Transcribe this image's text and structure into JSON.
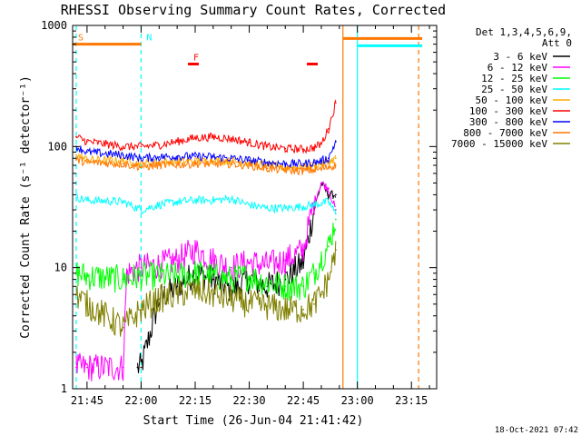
{
  "chart_data": {
    "type": "line",
    "title": "RHESSI Observing Summary Count Rates, Corrected",
    "xlabel": "Start Time (26-Jun-04 21:41:42)",
    "ylabel": "Corrected Count Rate (s⁻¹ detector⁻¹)",
    "y_scale": "log",
    "ylim": [
      1,
      1000
    ],
    "xlim": [
      "21:41",
      "23:22"
    ],
    "x_ticks": [
      "21:45",
      "22:00",
      "22:15",
      "22:30",
      "22:45",
      "23:00",
      "23:15"
    ],
    "y_ticks": [
      "1",
      "10",
      "100",
      "1000"
    ],
    "legend_header": [
      "Det 1,3,4,5,6,9,",
      "Att 0"
    ],
    "legend_position": "right",
    "series": [
      {
        "name": "3 - 6 keV",
        "color": "#000000",
        "x": [
          "21:59",
          "22:00",
          "22:05",
          "22:10",
          "22:15",
          "22:20",
          "22:25",
          "22:30",
          "22:35",
          "22:40",
          "22:45",
          "22:48",
          "22:50",
          "22:52",
          "22:54"
        ],
        "y": [
          1.5,
          1.5,
          5.5,
          7,
          9,
          8,
          6.5,
          8,
          7,
          8,
          11,
          30,
          50,
          40,
          40
        ]
      },
      {
        "name": "6 - 12 keV",
        "color": "#ff00ff",
        "x": [
          "21:42",
          "21:45",
          "21:55",
          "21:56",
          "22:00",
          "22:05",
          "22:10",
          "22:15",
          "22:20",
          "22:25",
          "22:30",
          "22:35",
          "22:40",
          "22:45",
          "22:48",
          "22:50",
          "22:52",
          "22:54"
        ],
        "y": [
          1.5,
          1.5,
          1.5,
          9,
          10,
          10.5,
          11.5,
          14,
          11.5,
          10,
          11,
          10.5,
          11.5,
          14,
          35,
          50,
          45,
          30
        ]
      },
      {
        "name": "12 - 25 keV",
        "color": "#00ff00",
        "x": [
          "21:42",
          "21:45",
          "21:55",
          "22:00",
          "22:05",
          "22:10",
          "22:15",
          "22:20",
          "22:25",
          "22:30",
          "22:35",
          "22:40",
          "22:45",
          "22:48",
          "22:50",
          "22:52",
          "22:54"
        ],
        "y": [
          9,
          8.5,
          8,
          8.5,
          8.5,
          8.5,
          9,
          8.5,
          8,
          8.5,
          7.5,
          7,
          7,
          9,
          12,
          15,
          25
        ]
      },
      {
        "name": "25 - 50 keV",
        "color": "#00ffff",
        "x": [
          "21:42",
          "21:45",
          "21:55",
          "22:00",
          "22:05",
          "22:10",
          "22:15",
          "22:20",
          "22:25",
          "22:30",
          "22:35",
          "22:40",
          "22:45",
          "22:48",
          "22:50",
          "22:52",
          "22:54"
        ],
        "y": [
          38,
          36,
          35,
          30,
          33,
          35,
          36,
          36,
          37,
          33,
          31,
          31,
          32,
          33,
          34,
          35,
          28
        ]
      },
      {
        "name": "50 - 100 keV",
        "color": "#ffaa00",
        "x": [
          "21:42",
          "21:45",
          "21:55",
          "22:00",
          "22:05",
          "22:10",
          "22:15",
          "22:20",
          "22:25",
          "22:30",
          "22:35",
          "22:40",
          "22:45",
          "22:48",
          "22:50",
          "22:52",
          "22:54"
        ],
        "y": [
          85,
          78,
          76,
          72,
          74,
          75,
          76,
          76,
          76,
          73,
          70,
          67,
          68,
          70,
          72,
          74,
          80
        ]
      },
      {
        "name": "100 - 300 keV",
        "color": "#ff0000",
        "x": [
          "21:42",
          "21:45",
          "21:55",
          "22:00",
          "22:05",
          "22:10",
          "22:15",
          "22:20",
          "22:25",
          "22:30",
          "22:35",
          "22:40",
          "22:45",
          "22:48",
          "22:50",
          "22:52",
          "22:54"
        ],
        "y": [
          120,
          110,
          100,
          100,
          103,
          110,
          118,
          120,
          116,
          108,
          100,
          96,
          95,
          98,
          105,
          140,
          230
        ]
      },
      {
        "name": "300 - 800 keV",
        "color": "#0000ff",
        "x": [
          "21:42",
          "21:45",
          "21:55",
          "22:00",
          "22:05",
          "22:10",
          "22:15",
          "22:20",
          "22:25",
          "22:30",
          "22:35",
          "22:40",
          "22:45",
          "22:48",
          "22:50",
          "22:52",
          "22:54"
        ],
        "y": [
          100,
          90,
          85,
          80,
          82,
          83,
          83,
          82,
          80,
          77,
          74,
          72,
          72,
          74,
          76,
          80,
          110
        ]
      },
      {
        "name": "800 - 7000 keV",
        "color": "#ff7700",
        "x": [
          "21:42",
          "21:45",
          "21:55",
          "22:00",
          "22:05",
          "22:10",
          "22:15",
          "22:20",
          "22:25",
          "22:30",
          "22:35",
          "22:40",
          "22:45",
          "22:48",
          "22:50",
          "22:52",
          "22:54"
        ],
        "y": [
          78,
          74,
          72,
          68,
          70,
          71,
          72,
          72,
          72,
          70,
          66,
          64,
          63,
          64,
          65,
          68,
          70
        ]
      },
      {
        "name": "7000 - 15000 keV",
        "color": "#808000",
        "x": [
          "21:42",
          "21:45",
          "21:55",
          "22:00",
          "22:05",
          "22:10",
          "22:15",
          "22:20",
          "22:25",
          "22:30",
          "22:35",
          "22:40",
          "22:45",
          "22:48",
          "22:50",
          "22:52",
          "22:54"
        ],
        "y": [
          6,
          5,
          3.2,
          4.5,
          5.5,
          6,
          6.5,
          6,
          5.5,
          5,
          4.8,
          4.5,
          4.5,
          5,
          6,
          8,
          14
        ]
      }
    ],
    "flags": [
      {
        "label": "S",
        "color": "#ff7700",
        "start": "21:41",
        "end": "22:00",
        "level": 700
      },
      {
        "label": "N",
        "color": "#00ffff",
        "start": "22:00",
        "end": "22:00",
        "level": 700
      },
      {
        "label": "F",
        "color": "#ff0000",
        "start": "22:13",
        "end": "22:16",
        "level": 480
      },
      {
        "label": "",
        "color": "#ff0000",
        "start": "22:46",
        "end": "22:49",
        "level": 480
      },
      {
        "label": "",
        "color": "#ff7700",
        "start": "22:56",
        "end": "23:18",
        "level": 780
      },
      {
        "label": "",
        "color": "#00ffff",
        "start": "23:00",
        "end": "23:18",
        "level": 680
      }
    ],
    "vertical_lines": [
      {
        "x": "21:42",
        "color": "#00ffff",
        "style": "dashed"
      },
      {
        "x": "22:00",
        "color": "#00ffff",
        "style": "dashed"
      },
      {
        "x": "22:56",
        "color": "#ff7700",
        "style": "solid"
      },
      {
        "x": "23:00",
        "color": "#00ffff",
        "style": "solid"
      },
      {
        "x": "23:17",
        "color": "#ff7700",
        "style": "dashed"
      }
    ],
    "grid": false
  },
  "footer": {
    "timestamp": "18-Oct-2021 07:42"
  }
}
